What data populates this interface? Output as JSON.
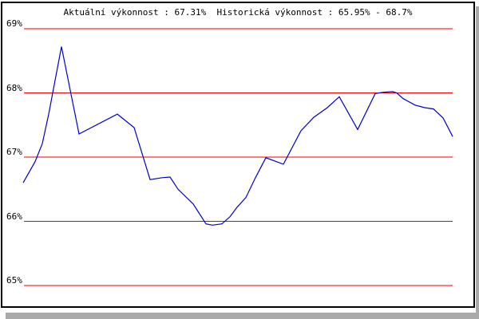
{
  "chart_data": {
    "type": "line",
    "title": "Aktuální výkonnost : 67.31%  Historická výkonnost : 65.95% - 68.7%",
    "current_performance_label": "Aktuální výkonnost",
    "current_performance_pct": 67.31,
    "historical_performance_label": "Historická výkonnost",
    "historical_min_pct": 65.95,
    "historical_max_pct": 68.7,
    "xlabel": "",
    "ylabel": "",
    "ylim": [
      64.7,
      69.4
    ],
    "yticks": [
      "69%",
      "68%",
      "67%",
      "66%",
      "65%"
    ],
    "gridline_values": [
      69,
      68,
      67,
      66,
      65
    ],
    "legend": "none",
    "grid": "horizontal-red-lines",
    "grid_color": "#ee0000",
    "line_color": "#0000cc",
    "background_color": "#ffffff",
    "border_color": "#000000",
    "shadow_color": "#aaaaaa",
    "text_color": "#000000",
    "points": [
      [
        26,
        66.6
      ],
      [
        41,
        66.93
      ],
      [
        50,
        67.21
      ],
      [
        58,
        67.67
      ],
      [
        74,
        68.72
      ],
      [
        96,
        67.36
      ],
      [
        144,
        67.67
      ],
      [
        165,
        67.46
      ],
      [
        185,
        66.65
      ],
      [
        200,
        66.68
      ],
      [
        210,
        66.69
      ],
      [
        220,
        66.5
      ],
      [
        239,
        66.27
      ],
      [
        255,
        65.96
      ],
      [
        263,
        65.94
      ],
      [
        275,
        65.96
      ],
      [
        285,
        66.07
      ],
      [
        294,
        66.22
      ],
      [
        305,
        66.37
      ],
      [
        317,
        66.68
      ],
      [
        330,
        66.99
      ],
      [
        352,
        66.89
      ],
      [
        374,
        67.41
      ],
      [
        390,
        67.62
      ],
      [
        407,
        67.77
      ],
      [
        422,
        67.94
      ],
      [
        445,
        67.43
      ],
      [
        467,
        67.99
      ],
      [
        477,
        68.01
      ],
      [
        489,
        68.02
      ],
      [
        494,
        68.0
      ],
      [
        502,
        67.91
      ],
      [
        517,
        67.81
      ],
      [
        529,
        67.77
      ],
      [
        540,
        67.75
      ],
      [
        552,
        67.61
      ],
      [
        564,
        67.32
      ]
    ]
  }
}
